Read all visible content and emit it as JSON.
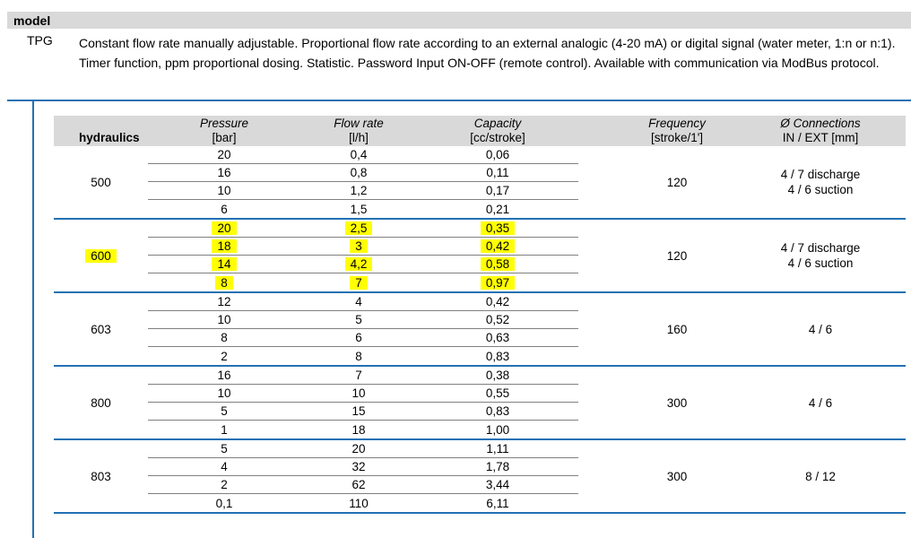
{
  "page": {
    "model_header": "model",
    "model_code": "TPG",
    "model_description": "Constant flow rate manually adjustable. Proportional flow rate according to an external analogic (4-20 mA) or digital signal (water meter, 1:n or n:1). Timer function, ppm proportional dosing. Statistic. Password Input ON-OFF (remote control). Available with communication via ModBus protocol."
  },
  "table": {
    "headers": {
      "hydraulics": "hydraulics",
      "columns": [
        {
          "title": "Pressure",
          "unit": "[bar]"
        },
        {
          "title": "Flow rate",
          "unit": "[l/h]"
        },
        {
          "title": "Capacity",
          "unit": "[cc/stroke]"
        },
        {
          "title": "Frequency",
          "unit": "[stroke/1']"
        },
        {
          "title": "Ø Connections",
          "unit": "IN / EXT [mm]"
        }
      ]
    },
    "groups": [
      {
        "model": "500",
        "highlighted": false,
        "rows": [
          {
            "pressure": "20",
            "flow": "0,4",
            "capacity": "0,06"
          },
          {
            "pressure": "16",
            "flow": "0,8",
            "capacity": "0,11"
          },
          {
            "pressure": "10",
            "flow": "1,2",
            "capacity": "0,17"
          },
          {
            "pressure": "6",
            "flow": "1,5",
            "capacity": "0,21"
          }
        ],
        "frequency": "120",
        "connections": [
          "4 / 7 discharge",
          "4 / 6 suction"
        ]
      },
      {
        "model": "600",
        "highlighted": true,
        "rows": [
          {
            "pressure": "20",
            "flow": "2,5",
            "capacity": "0,35"
          },
          {
            "pressure": "18",
            "flow": "3",
            "capacity": "0,42"
          },
          {
            "pressure": "14",
            "flow": "4,2",
            "capacity": "0,58"
          },
          {
            "pressure": "8",
            "flow": "7",
            "capacity": "0,97"
          }
        ],
        "frequency": "120",
        "connections": [
          "4 / 7 discharge",
          "4 / 6 suction"
        ]
      },
      {
        "model": "603",
        "highlighted": false,
        "rows": [
          {
            "pressure": "12",
            "flow": "4",
            "capacity": "0,42"
          },
          {
            "pressure": "10",
            "flow": "5",
            "capacity": "0,52"
          },
          {
            "pressure": "8",
            "flow": "6",
            "capacity": "0,63"
          },
          {
            "pressure": "2",
            "flow": "8",
            "capacity": "0,83"
          }
        ],
        "frequency": "160",
        "connections": [
          "4 / 6"
        ]
      },
      {
        "model": "800",
        "highlighted": false,
        "rows": [
          {
            "pressure": "16",
            "flow": "7",
            "capacity": "0,38"
          },
          {
            "pressure": "10",
            "flow": "10",
            "capacity": "0,55"
          },
          {
            "pressure": "5",
            "flow": "15",
            "capacity": "0,83"
          },
          {
            "pressure": "1",
            "flow": "18",
            "capacity": "1,00"
          }
        ],
        "frequency": "300",
        "connections": [
          "4 / 6"
        ]
      },
      {
        "model": "803",
        "highlighted": false,
        "rows": [
          {
            "pressure": "5",
            "flow": "20",
            "capacity": "1,11"
          },
          {
            "pressure": "4",
            "flow": "32",
            "capacity": "1,78"
          },
          {
            "pressure": "2",
            "flow": "62",
            "capacity": "3,44"
          },
          {
            "pressure": "0,1",
            "flow": "110",
            "capacity": "6,11"
          }
        ],
        "frequency": "300",
        "connections": [
          "8 / 12"
        ]
      }
    ]
  },
  "colors": {
    "accent_blue": "#2271b3",
    "header_gray": "#d9d9d9",
    "row_line_gray": "#808080",
    "highlight_yellow": "#ffff00",
    "text": "#000000"
  }
}
